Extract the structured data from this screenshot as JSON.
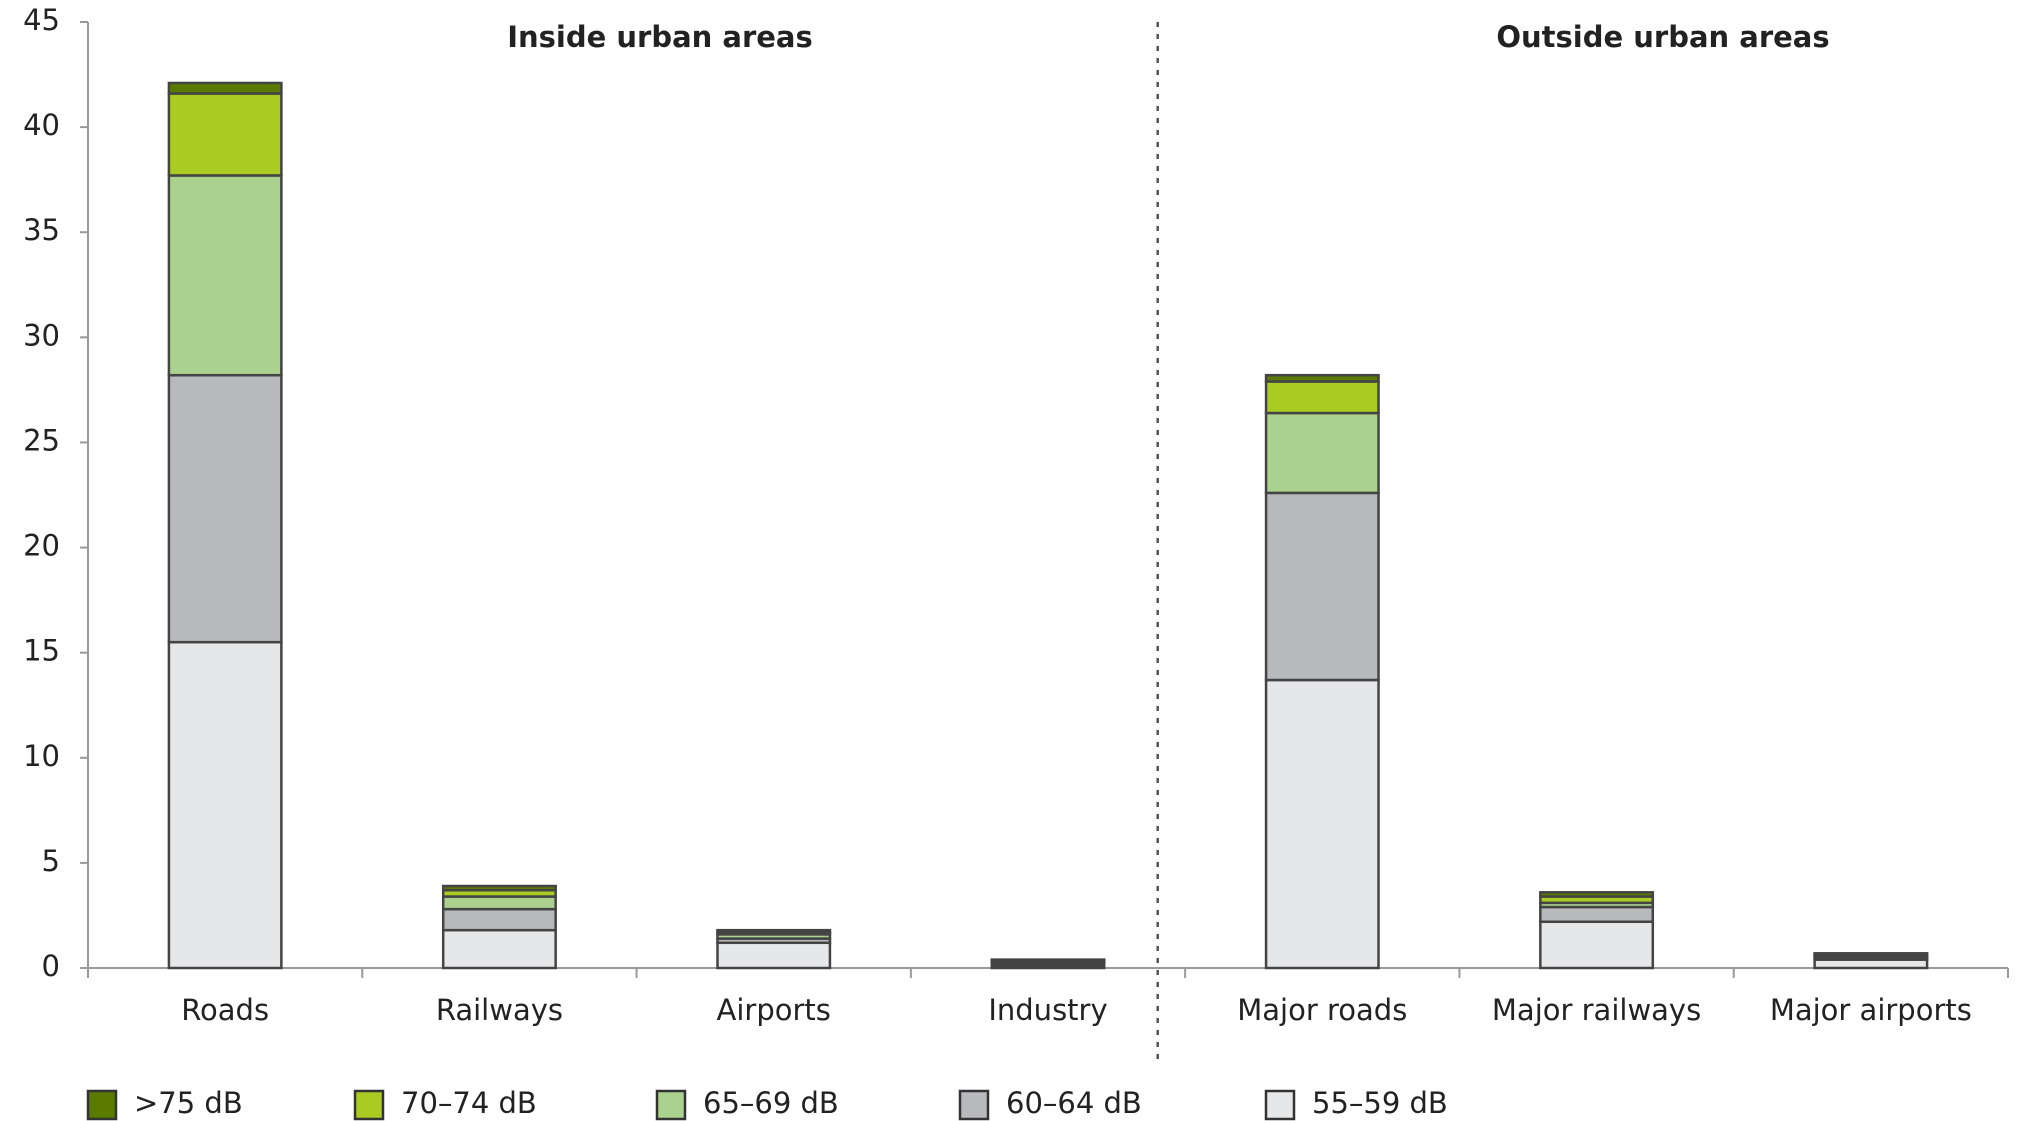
{
  "chart_data": {
    "type": "stacked_bar",
    "annotations": [
      "Inside urban areas",
      "Outside urban areas"
    ],
    "categories": [
      "Roads",
      "Railways",
      "Airports",
      "Industry",
      "Major roads",
      "Major railways",
      "Major airports"
    ],
    "series": [
      {
        "name": ">75 dB",
        "color": "#5a7a00",
        "values": [
          0.5,
          0.2,
          0.1,
          0.05,
          0.3,
          0.2,
          0.05
        ]
      },
      {
        "name": "70–74 dB",
        "color": "#aacc22",
        "values": [
          3.9,
          0.3,
          0.1,
          0.05,
          1.5,
          0.3,
          0.05
        ]
      },
      {
        "name": "65–69 dB",
        "color": "#aad18e",
        "values": [
          9.5,
          0.6,
          0.2,
          0.1,
          3.8,
          0.2,
          0.1
        ]
      },
      {
        "name": "60–64 dB",
        "color": "#b8b9bd",
        "values": [
          12.7,
          1.0,
          0.2,
          0.1,
          8.9,
          0.7,
          0.1
        ]
      },
      {
        "name": "55–59 dB",
        "color": "#e6e7e9",
        "values": [
          15.5,
          1.8,
          1.2,
          0.1,
          13.7,
          2.2,
          0.4
        ]
      }
    ],
    "ylim": [
      0,
      45
    ],
    "yticks": [
      0,
      5,
      10,
      15,
      20,
      25,
      30,
      35,
      40,
      45
    ],
    "legend": "bottom"
  }
}
